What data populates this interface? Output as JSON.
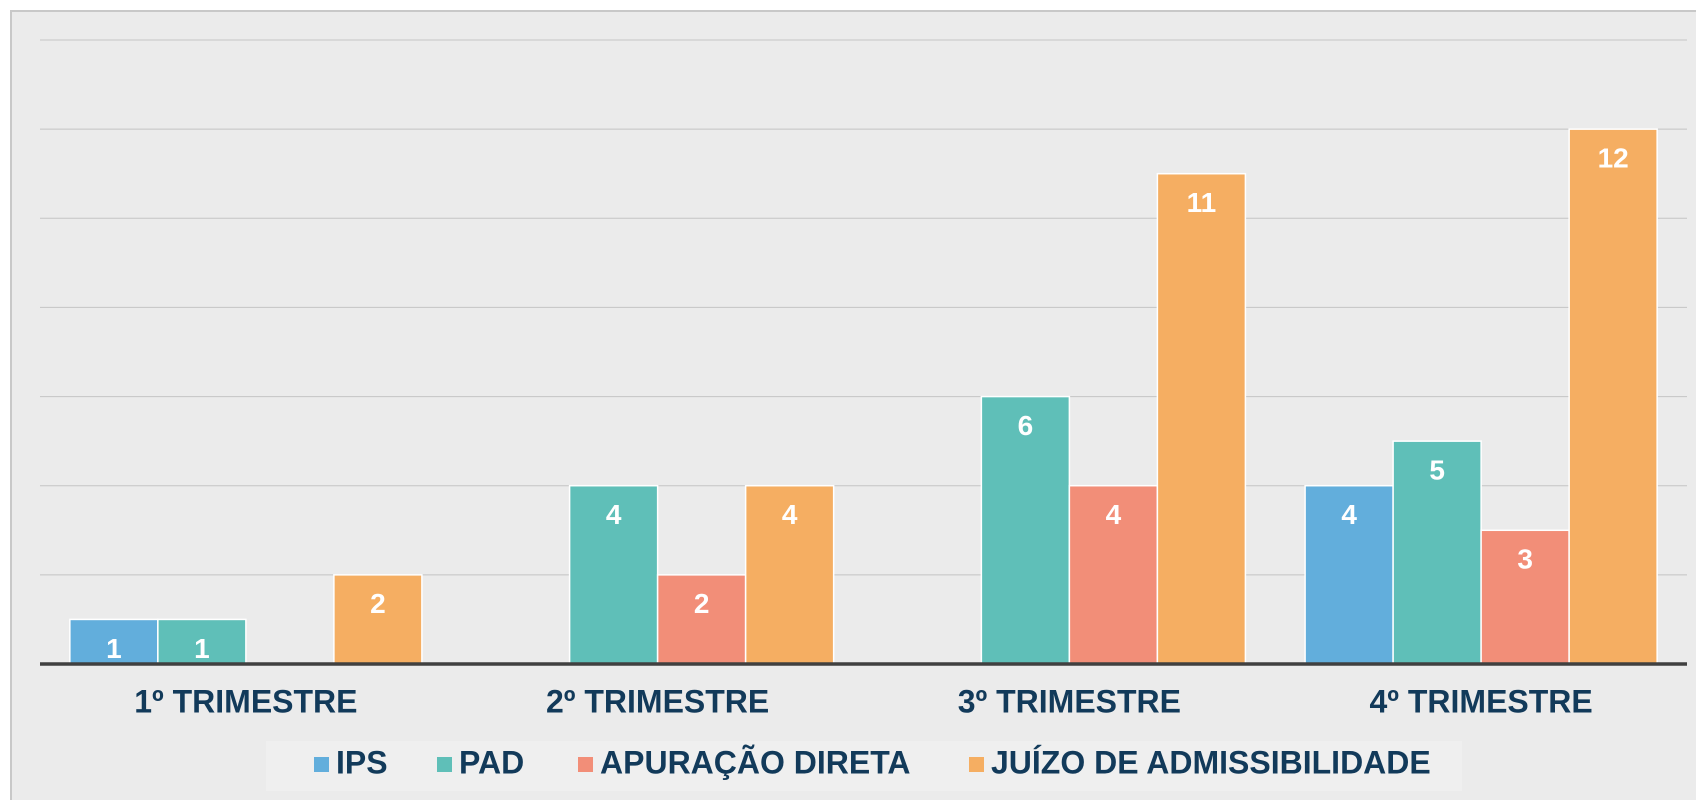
{
  "chart_data": {
    "type": "bar",
    "categories": [
      "1º TRIMESTRE",
      "2º TRIMESTRE",
      "3º TRIMESTRE",
      "4º TRIMESTRE"
    ],
    "series": [
      {
        "name": "IPS",
        "color": "#62aedc",
        "values": [
          1,
          null,
          null,
          4
        ]
      },
      {
        "name": "PAD",
        "color": "#5fbfb8",
        "values": [
          1,
          4,
          6,
          5
        ]
      },
      {
        "name": "APURAÇÃO DIRETA",
        "color": "#f28e78",
        "values": [
          null,
          2,
          4,
          3
        ]
      },
      {
        "name": "JUÍZO DE ADMISSIBILIDADE",
        "color": "#f5ae62",
        "values": [
          2,
          4,
          11,
          12
        ]
      }
    ],
    "ylim": [
      0,
      14
    ],
    "yticks": [
      0,
      2,
      4,
      6,
      8,
      10,
      12,
      14
    ],
    "grid": true,
    "legend": "bottom"
  }
}
